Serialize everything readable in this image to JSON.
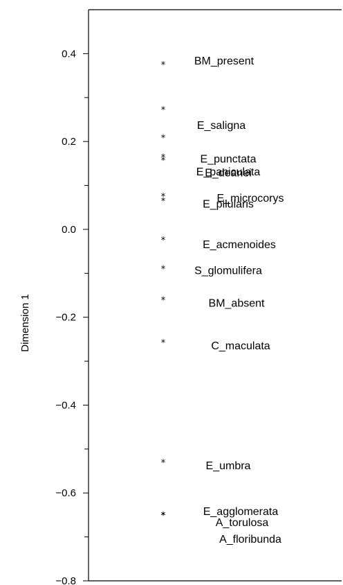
{
  "chart_data": {
    "type": "scatter",
    "ylabel": "Dimension 1",
    "xlabel": "",
    "ylim": [
      -0.8,
      0.5
    ],
    "yticks_major": [
      "0.4",
      "0.2",
      "0.0",
      "−0.2",
      "−0.4",
      "−0.6",
      "−0.8"
    ],
    "ytick_values": [
      0.4,
      0.2,
      0.0,
      -0.2,
      -0.4,
      -0.6,
      -0.8
    ],
    "marker": "*",
    "grid": false,
    "points": [
      {
        "label": "BM_present",
        "y": 0.375
      },
      {
        "label": "E_saligna",
        "y": 0.273
      },
      {
        "label": "E_deanei",
        "y": 0.209
      },
      {
        "label": "E_punctata",
        "y": 0.165
      },
      {
        "label": "E_paniculata",
        "y": 0.158
      },
      {
        "label": "E_microcorys",
        "y": 0.076
      },
      {
        "label": "E_pilularis",
        "y": 0.065
      },
      {
        "label": "E_acmenoides",
        "y": -0.024
      },
      {
        "label": "S_glomulifera",
        "y": -0.089
      },
      {
        "label": "BM_absent",
        "y": -0.16
      },
      {
        "label": "C_maculata",
        "y": -0.257
      },
      {
        "label": "E_umbra",
        "y": -0.53
      },
      {
        "label": "A_floribunda",
        "y": -0.65
      },
      {
        "label": "E_agglomerata",
        "y": -0.65
      },
      {
        "label": "A_torulosa",
        "y": -0.65
      }
    ]
  }
}
